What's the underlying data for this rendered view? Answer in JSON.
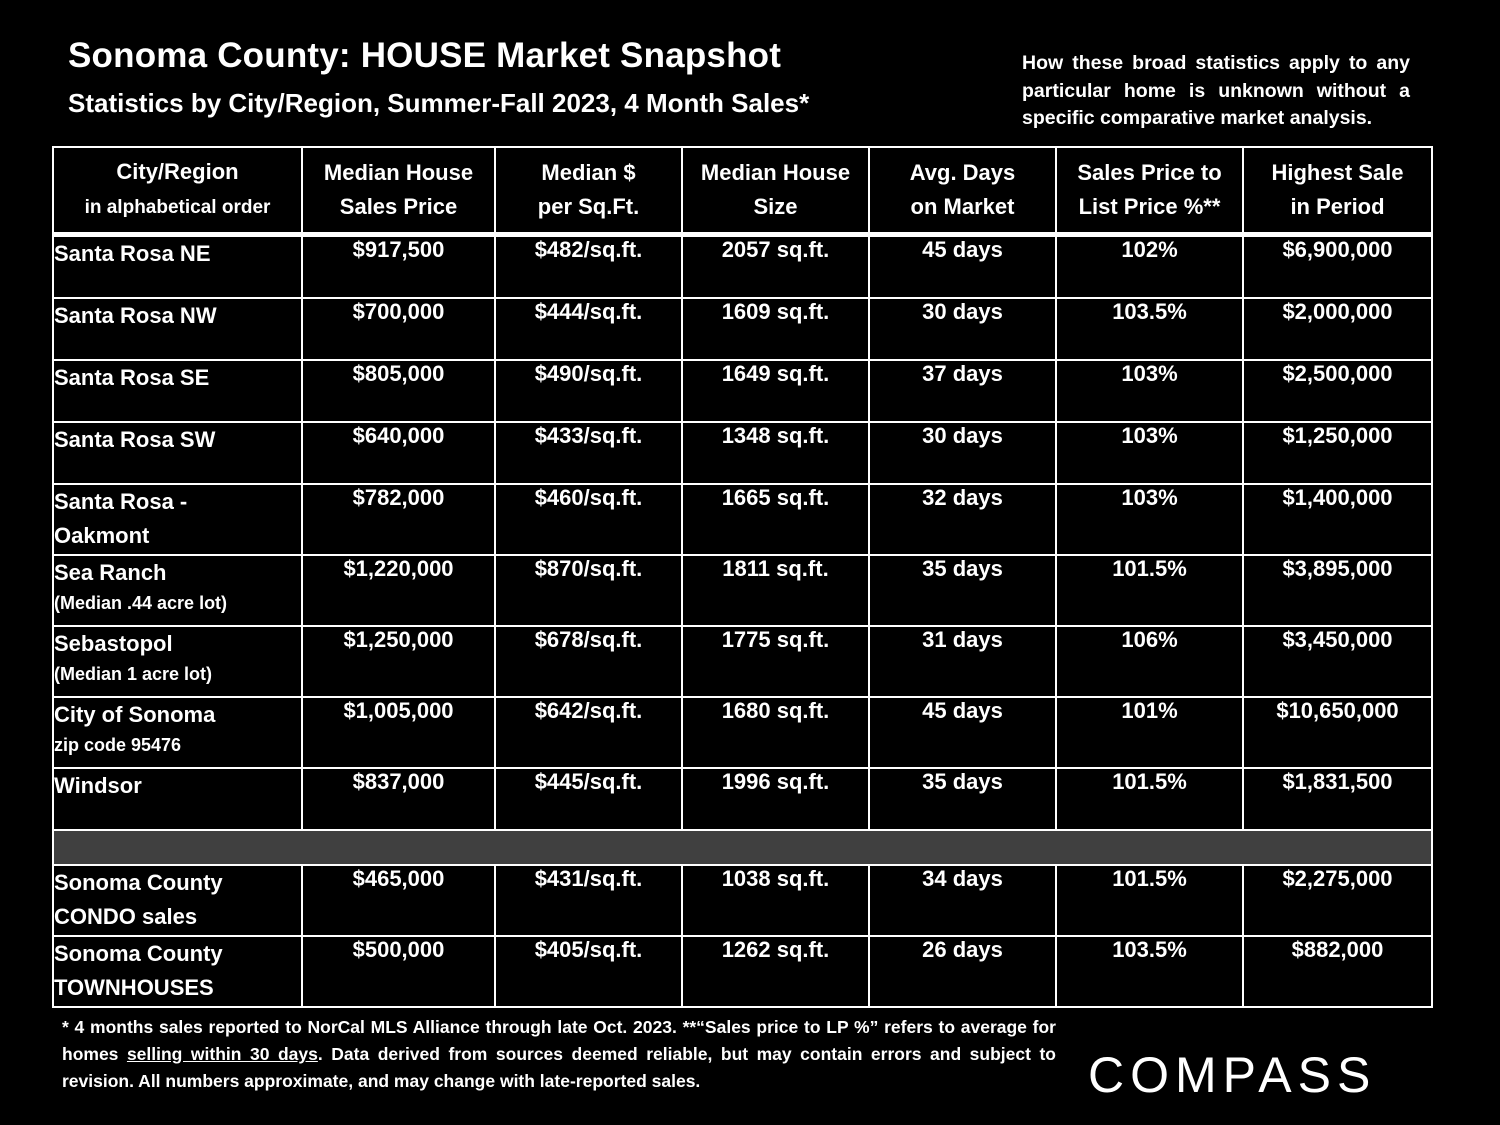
{
  "header": {
    "title": "Sonoma County: HOUSE Market Snapshot",
    "subtitle": "Statistics by City/Region, Summer-Fall 2023, 4 Month Sales*",
    "note": "How these broad statistics apply to any particular home is unknown without a specific comparative market analysis."
  },
  "table": {
    "columns": [
      {
        "line1": "City/Region",
        "line2": "in alphabetical order"
      },
      {
        "line1": "Median House",
        "line2": "Sales Price"
      },
      {
        "line1": "Median $",
        "line2": "per Sq.Ft."
      },
      {
        "line1": "Median House",
        "line2": "Size"
      },
      {
        "line1": "Avg. Days",
        "line2": "on Market"
      },
      {
        "line1": "Sales Price to",
        "line2": "List Price %**"
      },
      {
        "line1": "Highest Sale",
        "line2": "in Period"
      }
    ],
    "rows": [
      {
        "city": "Santa Rosa NE",
        "city_sub": "",
        "price": "$917,500",
        "ppsf": "$482/sq.ft.",
        "size": "2057 sq.ft.",
        "days": "45 days",
        "ratio": "102%",
        "high": "$6,900,000"
      },
      {
        "city": "Santa Rosa NW",
        "city_sub": "",
        "price": "$700,000",
        "ppsf": "$444/sq.ft.",
        "size": "1609 sq.ft.",
        "days": "30 days",
        "ratio": "103.5%",
        "high": "$2,000,000"
      },
      {
        "city": "Santa Rosa SE",
        "city_sub": "",
        "price": "$805,000",
        "ppsf": "$490/sq.ft.",
        "size": "1649 sq.ft.",
        "days": "37 days",
        "ratio": "103%",
        "high": "$2,500,000"
      },
      {
        "city": "Santa Rosa SW",
        "city_sub": "",
        "price": "$640,000",
        "ppsf": "$433/sq.ft.",
        "size": "1348 sq.ft.",
        "days": "30 days",
        "ratio": "103%",
        "high": "$1,250,000"
      },
      {
        "city": "Santa Rosa -",
        "city_line2": "Oakmont",
        "price": "$782,000",
        "ppsf": "$460/sq.ft.",
        "size": "1665 sq.ft.",
        "days": "32 days",
        "ratio": "103%",
        "high": "$1,400,000"
      },
      {
        "city": "Sea Ranch",
        "city_sub": "(Median .44 acre lot)",
        "price": "$1,220,000",
        "ppsf": "$870/sq.ft.",
        "size": "1811 sq.ft.",
        "days": "35 days",
        "ratio": "101.5%",
        "high": "$3,895,000"
      },
      {
        "city": "Sebastopol",
        "city_sub": "(Median 1 acre lot)",
        "price": "$1,250,000",
        "ppsf": "$678/sq.ft.",
        "size": "1775 sq.ft.",
        "days": "31 days",
        "ratio": "106%",
        "high": "$3,450,000"
      },
      {
        "city": "City of Sonoma",
        "city_sub": "zip code 95476",
        "price": "$1,005,000",
        "ppsf": "$642/sq.ft.",
        "size": "1680 sq.ft.",
        "days": "45 days",
        "ratio": "101%",
        "high": "$10,650,000"
      },
      {
        "city": "Windsor",
        "city_sub": "",
        "price": "$837,000",
        "ppsf": "$445/sq.ft.",
        "size": "1996 sq.ft.",
        "days": "35 days",
        "ratio": "101.5%",
        "high": "$1,831,500"
      },
      {
        "city": "Sonoma County",
        "city_line2": "CONDO sales",
        "price": "$465,000",
        "ppsf": "$431/sq.ft.",
        "size": "1038 sq.ft.",
        "days": "34 days",
        "ratio": "101.5%",
        "high": "$2,275,000"
      },
      {
        "city": "Sonoma County",
        "city_line2": "TOWNHOUSES",
        "price": "$500,000",
        "ppsf": "$405/sq.ft.",
        "size": "1262 sq.ft.",
        "days": "26 days",
        "ratio": "103.5%",
        "high": "$882,000"
      }
    ]
  },
  "footnote": {
    "part1": "* 4 months sales reported to NorCal MLS Alliance through late Oct. 2023. **“Sales price to LP %” refers to average for homes ",
    "underlined": "selling within 30 days",
    "part2": ". Data derived from sources deemed reliable, but may contain errors and subject to revision. All numbers approximate, and may change with late-reported sales."
  },
  "logo": {
    "text": "COMPASS"
  },
  "colors": {
    "background": "#000000",
    "text": "#ffffff",
    "separator": "#404040"
  }
}
